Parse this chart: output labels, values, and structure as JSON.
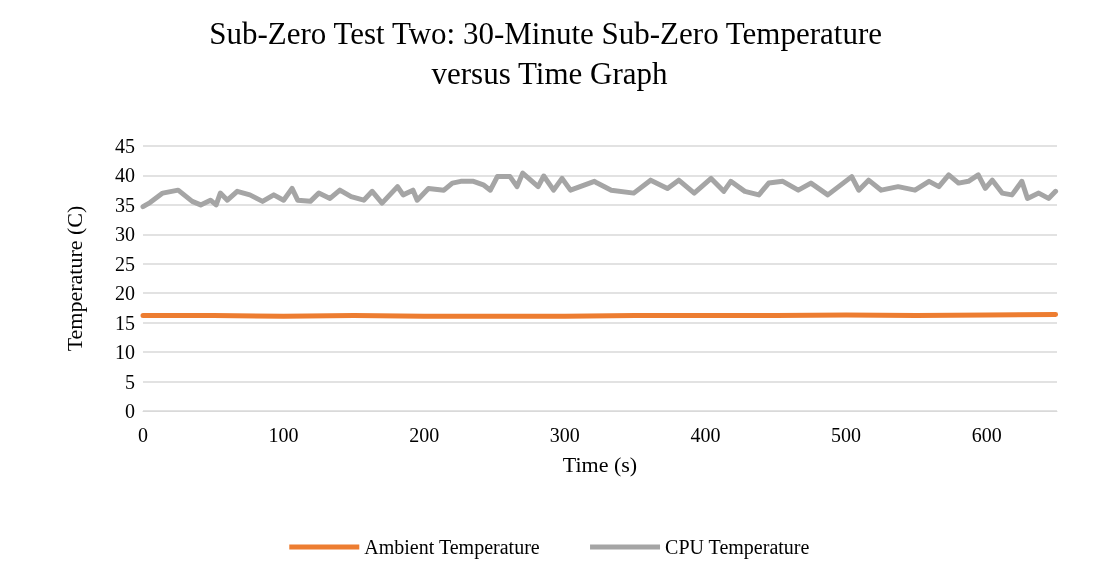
{
  "chart_data": {
    "type": "line",
    "title": "Sub-Zero Test Two: 30-Minute Sub-Zero Temperature versus Time Graph",
    "xlabel": "Time (s)",
    "ylabel": "Temperature (C)",
    "xlim": [
      0,
      650
    ],
    "xticks": [
      0,
      100,
      200,
      300,
      400,
      500,
      600
    ],
    "ylim": [
      0,
      45
    ],
    "yticks": [
      0,
      5,
      10,
      15,
      20,
      25,
      30,
      35,
      40,
      45
    ],
    "grid": "y",
    "legend": "bottom",
    "marker": "none",
    "line_style": "solid",
    "series": [
      {
        "name": "Ambient Temperature",
        "color": "#ed7d31",
        "x": [
          0,
          50,
          100,
          150,
          200,
          250,
          300,
          350,
          400,
          450,
          500,
          550,
          600,
          649
        ],
        "values": [
          16.2,
          16.2,
          16.1,
          16.2,
          16.1,
          16.1,
          16.1,
          16.2,
          16.2,
          16.2,
          16.3,
          16.2,
          16.3,
          16.4
        ]
      },
      {
        "name": "CPU Temperature",
        "color": "#a5a5a5",
        "x": [
          0,
          5,
          14,
          25,
          35,
          41,
          48,
          52,
          55,
          60,
          67,
          76,
          85,
          93,
          100,
          106,
          110,
          119,
          125,
          133,
          140,
          148,
          157,
          163,
          170,
          181,
          185,
          192,
          195,
          203,
          214,
          220,
          226,
          235,
          242,
          247,
          252,
          261,
          266,
          270,
          281,
          285,
          292,
          298,
          304,
          321,
          323,
          333,
          349,
          361,
          373,
          381,
          392,
          404,
          413,
          418,
          428,
          438,
          445,
          455,
          466,
          475,
          487,
          504,
          509,
          516,
          525,
          537,
          549,
          559,
          566,
          573,
          580,
          587,
          594,
          599,
          604,
          611,
          618,
          625,
          629,
          637,
          644,
          649
        ],
        "values": [
          34.7,
          35.4,
          37,
          37.5,
          35.6,
          35,
          35.8,
          35,
          37,
          35.8,
          37.3,
          36.7,
          35.6,
          36.7,
          35.8,
          37.8,
          35.8,
          35.6,
          37,
          36.1,
          37.5,
          36.4,
          35.8,
          37.3,
          35.3,
          38.1,
          36.7,
          37.5,
          35.8,
          37.8,
          37.5,
          38.7,
          39,
          39,
          38.4,
          37.5,
          39.8,
          39.8,
          38.1,
          40.4,
          38.1,
          39.9,
          37.5,
          39.5,
          37.5,
          39,
          38.7,
          37.5,
          37,
          39.2,
          37.8,
          39.2,
          37,
          39.5,
          37.3,
          39,
          37.3,
          36.7,
          38.7,
          39,
          37.5,
          38.7,
          36.7,
          39.8,
          37.5,
          39.2,
          37.5,
          38.1,
          37.5,
          39,
          38.1,
          40.1,
          38.7,
          39,
          40.1,
          37.8,
          39.2,
          37,
          36.7,
          39,
          36.1,
          37,
          36.1,
          37.3
        ]
      }
    ]
  }
}
